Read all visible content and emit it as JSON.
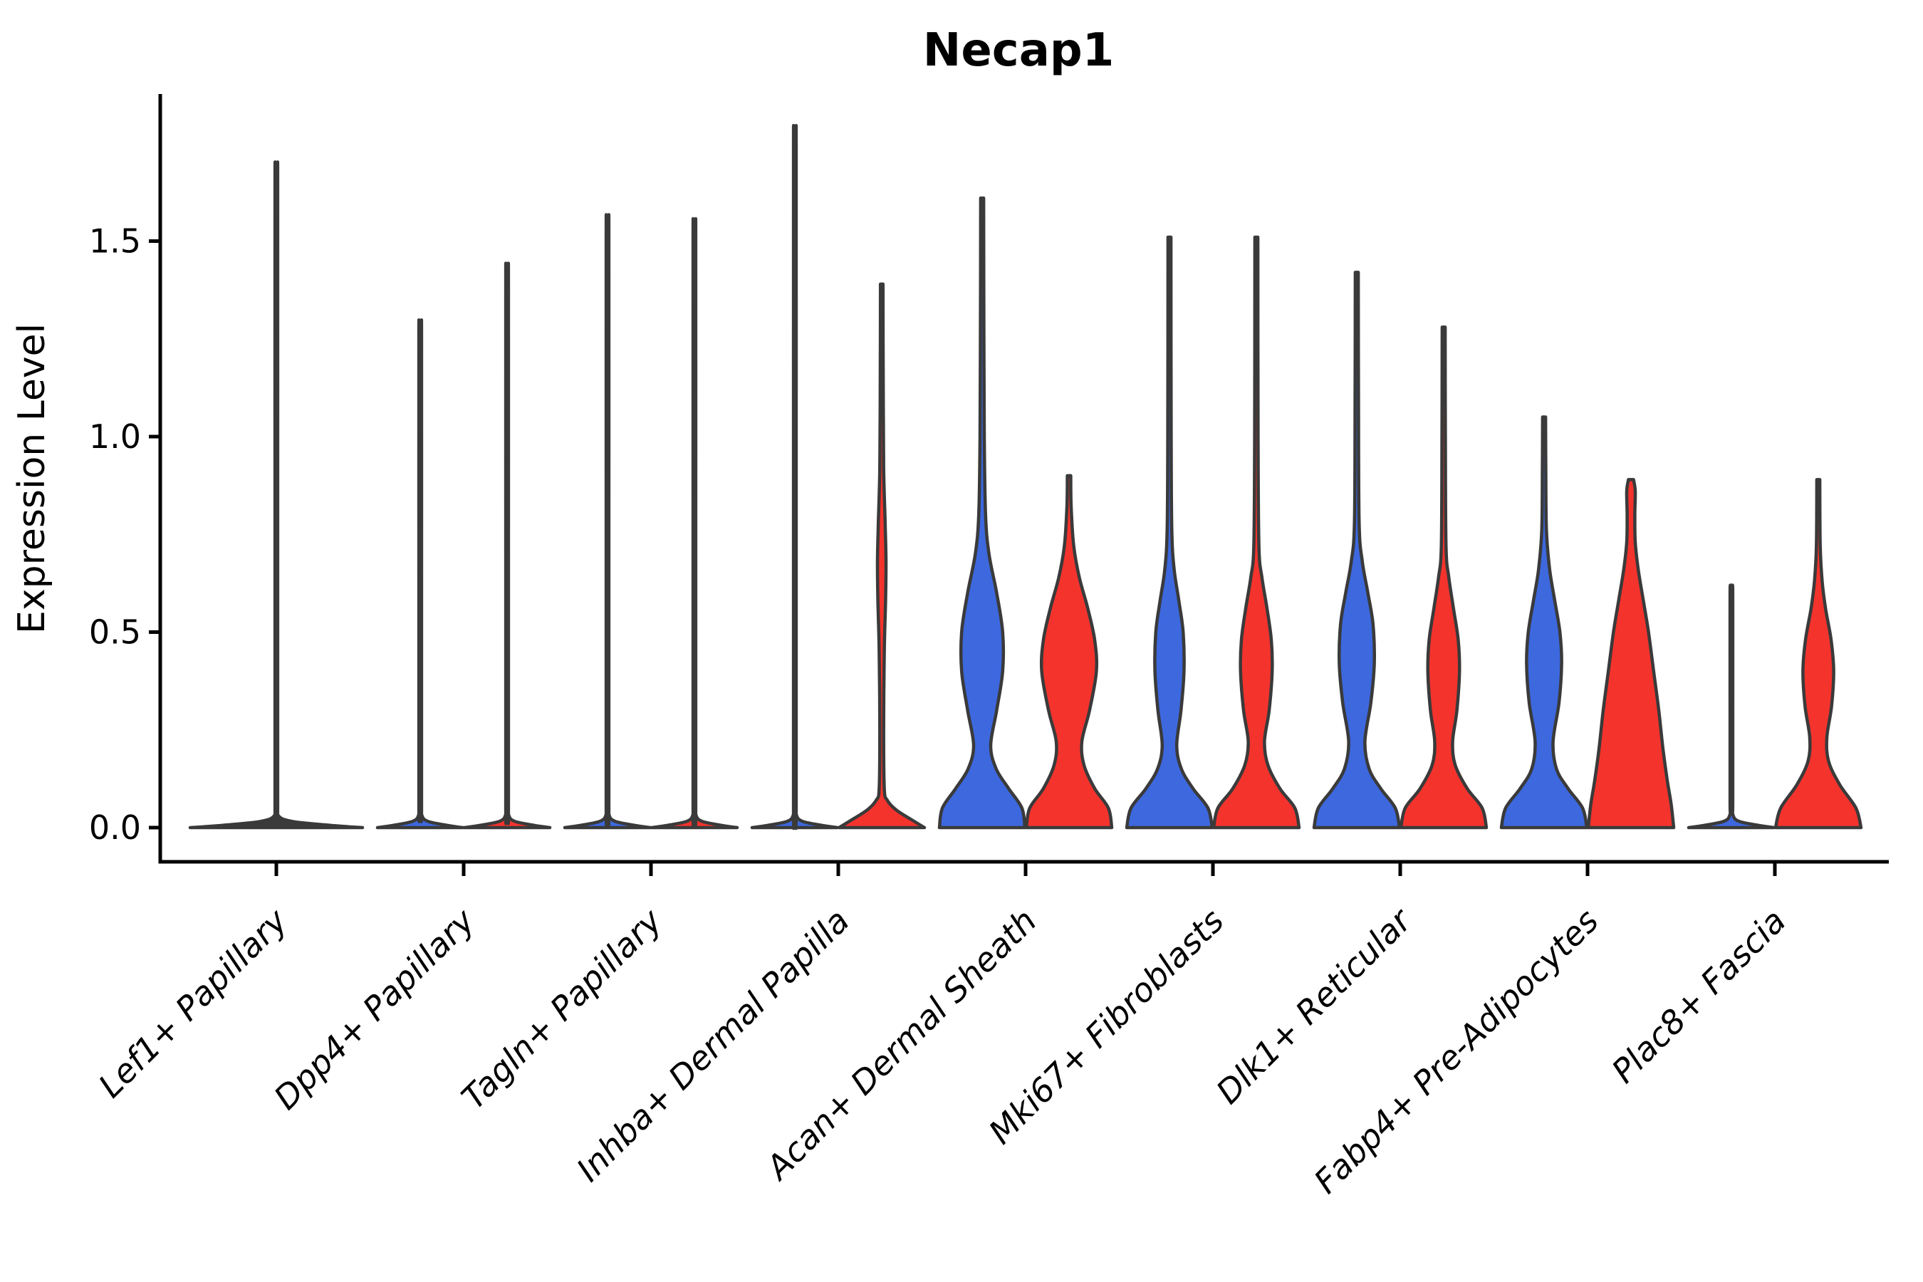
{
  "figure": {
    "title": "Necap1",
    "background_color": "#ffffff"
  },
  "chart_data": {
    "type": "violin",
    "title": "Necap1",
    "xlabel": "",
    "ylabel": "Expression Level",
    "yticks": [
      "0.0",
      "0.5",
      "1.0",
      "1.5"
    ],
    "ytick_values": [
      0,
      0.5,
      1.0,
      1.5
    ],
    "ylim": [
      -0.12,
      1.88
    ],
    "grid": false,
    "legend_position": "none",
    "categories": [
      "Lef1+ Papillary",
      "Dpp4+ Papillary",
      "Tagln+ Papillary",
      "Inhba+ Dermal Papilla",
      "Acan+ Dermal Sheath",
      "Mki67+ Fibroblasts",
      "Dlk1+ Reticular",
      "Fabp4+ Pre-Adipocytes",
      "Plac8+ Fascia"
    ],
    "group_colors": {
      "blue": "#3D68DE",
      "red": "#F4332D",
      "neutral": "#3A3A3A"
    },
    "outline_color": "#3A3A3A",
    "axis_color": "#000000",
    "violins": [
      {
        "category": 0,
        "group": "neutral",
        "span": "full",
        "shape": "flat_spike",
        "max": 1.67
      },
      {
        "category": 1,
        "group": "blue",
        "span": "left",
        "shape": "flat_spike",
        "max": 1.28
      },
      {
        "category": 1,
        "group": "red",
        "span": "right",
        "shape": "flat_spike",
        "max": 1.42
      },
      {
        "category": 2,
        "group": "blue",
        "span": "left",
        "shape": "flat_spike",
        "max": 1.54
      },
      {
        "category": 2,
        "group": "red",
        "span": "right",
        "shape": "flat_spike",
        "max": 1.53
      },
      {
        "category": 3,
        "group": "blue",
        "span": "left",
        "shape": "flat_spike",
        "max": 1.76
      },
      {
        "category": 3,
        "group": "red",
        "span": "right",
        "shape": "profile",
        "max": 1.39,
        "profile": [
          [
            0,
            1.0
          ],
          [
            0.02,
            0.7
          ],
          [
            0.045,
            0.34
          ],
          [
            0.07,
            0.13
          ],
          [
            0.1,
            0.06
          ],
          [
            0.25,
            0.045
          ],
          [
            0.45,
            0.06
          ],
          [
            0.58,
            0.09
          ],
          [
            0.68,
            0.1
          ],
          [
            0.78,
            0.08
          ],
          [
            0.92,
            0.045
          ],
          [
            1.15,
            0.035
          ],
          [
            1.39,
            0.03
          ]
        ]
      },
      {
        "category": 4,
        "group": "blue",
        "span": "left",
        "shape": "profile",
        "max": 1.61,
        "profile": [
          [
            0,
            1.0
          ],
          [
            0.05,
            0.93
          ],
          [
            0.1,
            0.62
          ],
          [
            0.15,
            0.33
          ],
          [
            0.21,
            0.2
          ],
          [
            0.3,
            0.34
          ],
          [
            0.4,
            0.48
          ],
          [
            0.5,
            0.48
          ],
          [
            0.6,
            0.34
          ],
          [
            0.7,
            0.16
          ],
          [
            0.8,
            0.08
          ],
          [
            1.0,
            0.05
          ],
          [
            1.3,
            0.04
          ],
          [
            1.61,
            0.035
          ]
        ]
      },
      {
        "category": 4,
        "group": "red",
        "span": "right",
        "shape": "profile",
        "max": 0.9,
        "profile": [
          [
            0,
            1.0
          ],
          [
            0.05,
            0.92
          ],
          [
            0.1,
            0.6
          ],
          [
            0.16,
            0.35
          ],
          [
            0.22,
            0.3
          ],
          [
            0.3,
            0.48
          ],
          [
            0.4,
            0.64
          ],
          [
            0.48,
            0.6
          ],
          [
            0.56,
            0.44
          ],
          [
            0.64,
            0.24
          ],
          [
            0.72,
            0.11
          ],
          [
            0.82,
            0.05
          ],
          [
            0.9,
            0.04
          ]
        ]
      },
      {
        "category": 5,
        "group": "blue",
        "span": "left",
        "shape": "profile",
        "max": 1.51,
        "profile": [
          [
            0,
            1.0
          ],
          [
            0.05,
            0.9
          ],
          [
            0.1,
            0.55
          ],
          [
            0.15,
            0.28
          ],
          [
            0.21,
            0.17
          ],
          [
            0.3,
            0.27
          ],
          [
            0.4,
            0.34
          ],
          [
            0.5,
            0.32
          ],
          [
            0.58,
            0.22
          ],
          [
            0.66,
            0.11
          ],
          [
            0.76,
            0.055
          ],
          [
            1.0,
            0.04
          ],
          [
            1.51,
            0.035
          ]
        ]
      },
      {
        "category": 5,
        "group": "red",
        "span": "right",
        "shape": "profile",
        "max": 1.51,
        "profile": [
          [
            0,
            1.0
          ],
          [
            0.05,
            0.9
          ],
          [
            0.1,
            0.55
          ],
          [
            0.16,
            0.27
          ],
          [
            0.22,
            0.19
          ],
          [
            0.3,
            0.3
          ],
          [
            0.4,
            0.37
          ],
          [
            0.48,
            0.35
          ],
          [
            0.56,
            0.25
          ],
          [
            0.64,
            0.13
          ],
          [
            0.72,
            0.06
          ],
          [
            1.0,
            0.04
          ],
          [
            1.51,
            0.035
          ]
        ]
      },
      {
        "category": 6,
        "group": "blue",
        "span": "left",
        "shape": "profile",
        "max": 1.42,
        "profile": [
          [
            0,
            1.0
          ],
          [
            0.05,
            0.9
          ],
          [
            0.1,
            0.56
          ],
          [
            0.15,
            0.29
          ],
          [
            0.22,
            0.19
          ],
          [
            0.32,
            0.33
          ],
          [
            0.42,
            0.41
          ],
          [
            0.52,
            0.38
          ],
          [
            0.6,
            0.26
          ],
          [
            0.68,
            0.13
          ],
          [
            0.78,
            0.055
          ],
          [
            1.1,
            0.04
          ],
          [
            1.42,
            0.035
          ]
        ]
      },
      {
        "category": 6,
        "group": "red",
        "span": "right",
        "shape": "profile",
        "max": 1.28,
        "profile": [
          [
            0,
            1.0
          ],
          [
            0.05,
            0.9
          ],
          [
            0.1,
            0.55
          ],
          [
            0.16,
            0.27
          ],
          [
            0.22,
            0.21
          ],
          [
            0.3,
            0.31
          ],
          [
            0.4,
            0.37
          ],
          [
            0.48,
            0.34
          ],
          [
            0.56,
            0.23
          ],
          [
            0.64,
            0.12
          ],
          [
            0.72,
            0.055
          ],
          [
            1.0,
            0.04
          ],
          [
            1.28,
            0.035
          ]
        ]
      },
      {
        "category": 7,
        "group": "blue",
        "span": "left",
        "shape": "profile",
        "max": 1.05,
        "profile": [
          [
            0,
            1.0
          ],
          [
            0.05,
            0.9
          ],
          [
            0.1,
            0.56
          ],
          [
            0.15,
            0.29
          ],
          [
            0.22,
            0.21
          ],
          [
            0.32,
            0.35
          ],
          [
            0.42,
            0.41
          ],
          [
            0.5,
            0.37
          ],
          [
            0.58,
            0.25
          ],
          [
            0.66,
            0.13
          ],
          [
            0.76,
            0.055
          ],
          [
            0.92,
            0.04
          ],
          [
            1.05,
            0.035
          ]
        ]
      },
      {
        "category": 7,
        "group": "red",
        "span": "right",
        "shape": "profile",
        "max": 0.89,
        "profile": [
          [
            0,
            1.0
          ],
          [
            0.06,
            0.94
          ],
          [
            0.12,
            0.85
          ],
          [
            0.2,
            0.75
          ],
          [
            0.3,
            0.65
          ],
          [
            0.4,
            0.53
          ],
          [
            0.5,
            0.41
          ],
          [
            0.58,
            0.29
          ],
          [
            0.66,
            0.17
          ],
          [
            0.73,
            0.1
          ],
          [
            0.8,
            0.09
          ],
          [
            0.86,
            0.1
          ],
          [
            0.89,
            0.06
          ]
        ]
      },
      {
        "category": 8,
        "group": "blue",
        "span": "left",
        "shape": "flat_spike",
        "max": 0.62
      },
      {
        "category": 8,
        "group": "red",
        "span": "right",
        "shape": "profile",
        "max": 0.89,
        "profile": [
          [
            0,
            1.0
          ],
          [
            0.05,
            0.88
          ],
          [
            0.11,
            0.5
          ],
          [
            0.17,
            0.24
          ],
          [
            0.23,
            0.2
          ],
          [
            0.31,
            0.31
          ],
          [
            0.4,
            0.36
          ],
          [
            0.48,
            0.3
          ],
          [
            0.56,
            0.17
          ],
          [
            0.63,
            0.09
          ],
          [
            0.72,
            0.045
          ],
          [
            0.89,
            0.035
          ]
        ]
      }
    ]
  }
}
